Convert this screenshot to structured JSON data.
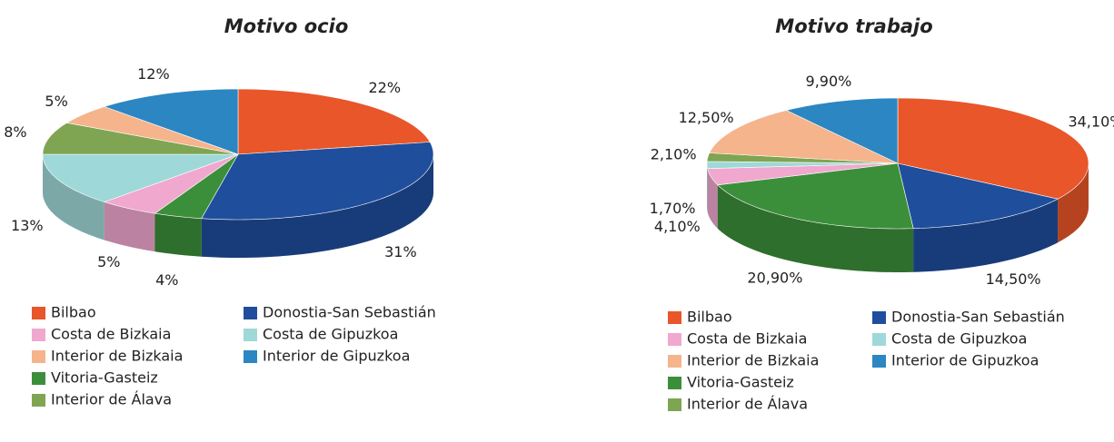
{
  "chart_data": [
    {
      "type": "pie3d",
      "title": "Motivo ocio",
      "categories": [
        "Bilbao",
        "Donostia-San Sebastián",
        "Vitoria-Gasteiz",
        "Costa de Bizkaia",
        "Costa de Gipuzkoa",
        "Interior de Álava",
        "Interior de Bizkaia",
        "Interior de Gipuzkoa"
      ],
      "values": [
        22,
        31,
        4,
        5,
        13,
        8,
        5,
        12
      ],
      "value_labels": [
        "22%",
        "31%",
        "4%",
        "5%",
        "13%",
        "8%",
        "5%",
        "12%"
      ],
      "colors": [
        "#e8562a",
        "#1f4e9c",
        "#3c8f3a",
        "#f0a8cf",
        "#9fd8d8",
        "#7fa552",
        "#f5b48c",
        "#2b86c2"
      ]
    },
    {
      "type": "pie3d",
      "title": "Motivo trabajo",
      "categories": [
        "Bilbao",
        "Donostia-San Sebastián",
        "Vitoria-Gasteiz",
        "Costa de Bizkaia",
        "Costa de Gipuzkoa",
        "Interior de Álava",
        "Interior de Bizkaia",
        "Interior de Gipuzkoa"
      ],
      "values": [
        34.1,
        14.5,
        20.9,
        4.1,
        1.7,
        2.1,
        12.5,
        9.9
      ],
      "value_labels": [
        "34,10%",
        "14,50%",
        "20,90%",
        "4,10%",
        "1,70%",
        "2,10%",
        "12,50%",
        "9,90%"
      ],
      "colors": [
        "#e8562a",
        "#1f4e9c",
        "#3c8f3a",
        "#f0a8cf",
        "#9fd8d8",
        "#7fa552",
        "#f5b48c",
        "#2b86c2"
      ]
    }
  ]
}
